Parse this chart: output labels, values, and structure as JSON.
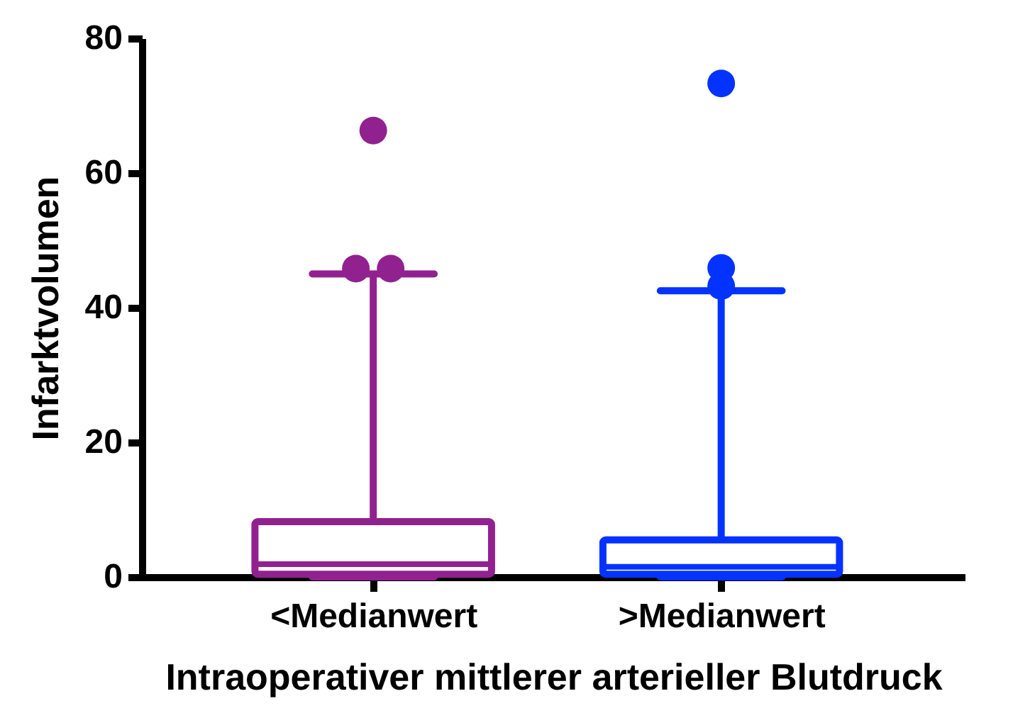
{
  "chart_data": {
    "type": "box",
    "xlabel": "Intraoperativer mittlerer arterieller Blutdruck",
    "ylabel": "Infarktvolumen",
    "categories": [
      "<Medianwert",
      ">Medianwert"
    ],
    "colors": [
      "#922190",
      "#0433ff"
    ],
    "boxes": [
      {
        "low": 0,
        "q1": 0.4,
        "median": 1.9,
        "q3": 8.2,
        "high": 45,
        "outliers": [
          66.3,
          45.8,
          45.8
        ]
      },
      {
        "low": 0,
        "q1": 0.4,
        "median": 1.5,
        "q3": 5.5,
        "high": 42.5,
        "outliers": [
          73.3,
          45.9,
          43.2
        ]
      }
    ],
    "ylim": [
      0,
      80
    ],
    "yticks": [
      0,
      20,
      40,
      60,
      80
    ]
  }
}
